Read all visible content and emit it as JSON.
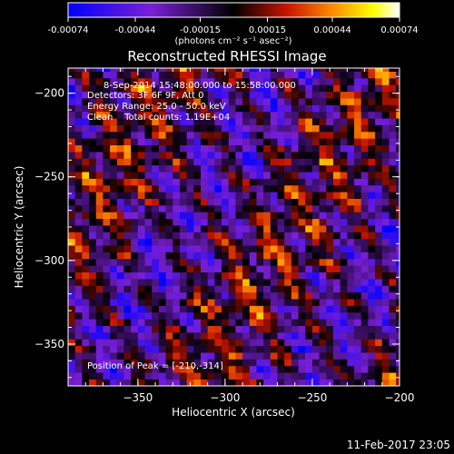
{
  "chart_data": {
    "type": "heatmap",
    "title": "Reconstructed RHESSI Image",
    "xlabel": "Heliocentric X (arcsec)",
    "ylabel": "Heliocentric Y (arcsec)",
    "xlim": [
      -390,
      -200
    ],
    "ylim": [
      -375,
      -185
    ],
    "xticks": [
      -350,
      -300,
      -250,
      -200
    ],
    "yticks": [
      -200,
      -250,
      -300,
      -350
    ],
    "colorbar": {
      "label": "(photons cm⁻² s⁻¹ asec⁻²)",
      "ticks": [
        "-0.00074",
        "-0.00044",
        "-0.00015",
        "0.00015",
        "0.00044",
        "0.00074"
      ],
      "range": [
        -0.00074,
        0.00074
      ],
      "colors": [
        "#0000ff",
        "#7a1fd6",
        "#000000",
        "#c81400",
        "#ff8c00",
        "#ffff00",
        "#ffffff"
      ]
    },
    "annotations": {
      "time_range": "8-Sep-2014 15:48:00.000 to 15:58:00.000",
      "detectors": "Detectors: 3F 6F 9F, Att 0",
      "energy": "Energy Range: 25.0 - 50.0 keV",
      "clean": "Clean    Total counts: 1.19E+04",
      "peak": "Position of Peak = [-210,-314]"
    },
    "peak": {
      "x": -210,
      "y": -314
    }
  },
  "footer": {
    "date": "11-Feb-2017 23:05"
  }
}
